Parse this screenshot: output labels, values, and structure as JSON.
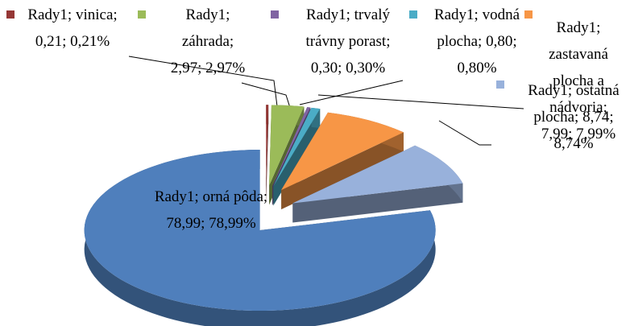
{
  "chart_data": {
    "type": "pie",
    "series_name": "Rady1",
    "values": [
      0.21,
      2.97,
      0.3,
      0.8,
      7.99,
      8.74,
      78.99
    ],
    "value_labels": [
      "Rady1; vinica; 0,21; 0,21%",
      "Rady1; záhrada; 2,97; 2,97%",
      "Rady1; trvalý trávny porast; 0,30; 0,30%",
      "Rady1; vodná plocha; 0,80; 0,80%",
      "Rady1; zastavaná plocha a nádvoria; 7,99; 7,99%",
      "Rady1; ostatná plocha; 8,74; 8,74%",
      "Rady1; orná pôda; 78,99; 78,99%"
    ],
    "colors": [
      "#953735",
      "#9bbb59",
      "#8064a2",
      "#4bacc6",
      "#f79646",
      "#98b1db",
      "#4f7fbc"
    ],
    "three_d": true
  }
}
